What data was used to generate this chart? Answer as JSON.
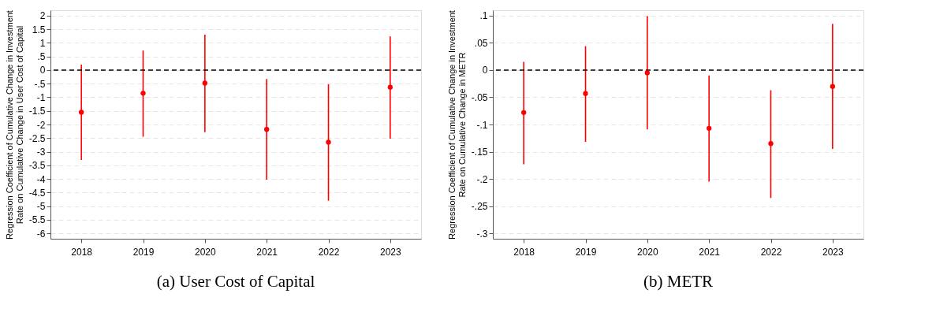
{
  "chart_data": [
    {
      "type": "scatter",
      "ylabel": "Regression Coefficient of Cumulative Change in Investment Rate on Cumulative Change in User Cost of Capital",
      "annotations": [
        "(a) User Cost of Capital"
      ],
      "categories": [
        "2018",
        "2019",
        "2020",
        "2021",
        "2022",
        "2023"
      ],
      "values": [
        -1.55,
        -0.85,
        -0.48,
        -2.18,
        -2.65,
        -0.63
      ],
      "errors": [
        [
          -3.3,
          0.2
        ],
        [
          -2.45,
          0.72
        ],
        [
          -2.28,
          1.3
        ],
        [
          -4.03,
          -0.33
        ],
        [
          -4.8,
          -0.52
        ],
        [
          -2.52,
          1.24
        ]
      ],
      "color": "#ff0000",
      "marker": "circle",
      "ylim": [
        -6.2,
        2.2
      ],
      "yticks": [
        2,
        1.5,
        1,
        {
          "value": 0.5,
          "label": ".5"
        },
        0,
        {
          "value": -0.5,
          "label": "-.5"
        },
        -1,
        -1.5,
        -2,
        -2.5,
        -3,
        -3.5,
        -4,
        -4.5,
        -5,
        -5.5,
        -6
      ],
      "grid": "y",
      "ref_lines": [
        {
          "axis": "y",
          "value": 0,
          "color": "#000000",
          "line_style": "dashed"
        }
      ]
    },
    {
      "type": "scatter",
      "ylabel": "Regression Coefficient of Cumulative Change in Investment Rate on Cumulative Change in METR",
      "annotations": [
        "(b) METR"
      ],
      "categories": [
        "2018",
        "2019",
        "2020",
        "2021",
        "2022",
        "2023"
      ],
      "values": [
        -0.078,
        -0.043,
        -0.005,
        -0.107,
        -0.135,
        -0.03
      ],
      "errors": [
        [
          -0.173,
          0.015
        ],
        [
          -0.132,
          0.044
        ],
        [
          -0.109,
          0.099
        ],
        [
          -0.205,
          -0.01
        ],
        [
          -0.235,
          -0.037
        ],
        [
          -0.145,
          0.085
        ]
      ],
      "color": "#ff0000",
      "marker": "circle",
      "ylim": [
        -0.31,
        0.11
      ],
      "yticks": [
        {
          "value": 0.1,
          "label": ".1"
        },
        {
          "value": 0.05,
          "label": ".05"
        },
        0,
        {
          "value": -0.05,
          "label": "-.05"
        },
        {
          "value": -0.1,
          "label": "-.1"
        },
        {
          "value": -0.15,
          "label": "-.15"
        },
        {
          "value": -0.2,
          "label": "-.2"
        },
        {
          "value": -0.25,
          "label": "-.25"
        },
        {
          "value": -0.3,
          "label": "-.3"
        }
      ],
      "grid": "y",
      "ref_lines": [
        {
          "axis": "y",
          "value": 0,
          "color": "#000000",
          "line_style": "dashed"
        }
      ]
    }
  ]
}
